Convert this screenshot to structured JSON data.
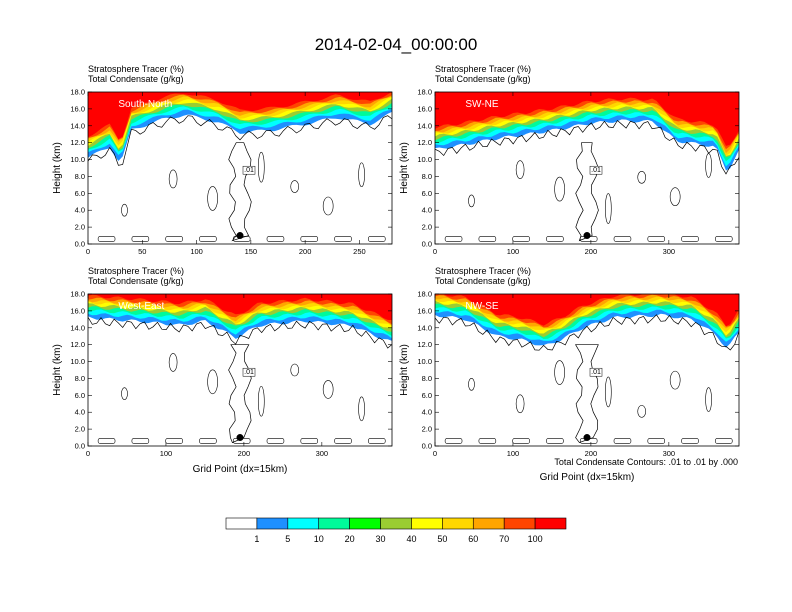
{
  "title": "2014-02-04_00:00:00",
  "field_labels": [
    "Stratosphere Tracer   (%)",
    "Total Condensate   (g/kg)"
  ],
  "contour_info": "Total Condensate Contours: .01 to .01 by .000",
  "colors": {
    "levels": [
      "#ffffff",
      "#1e90ff",
      "#00ffff",
      "#00fa9a",
      "#00ff00",
      "#9acd32",
      "#ffff00",
      "#ffd700",
      "#ffa500",
      "#ff4500",
      "#ff0000"
    ],
    "contour": "#000000",
    "marker": "#000000"
  },
  "chart_data": [
    {
      "type": "heatmap",
      "panel_label": "South-North",
      "ylabel": "Height (km)",
      "xlabel": "",
      "xlim": [
        0,
        280
      ],
      "ylim": [
        0,
        18
      ],
      "xticks": [
        "0",
        "50",
        "100",
        "150",
        "200",
        "250"
      ],
      "yticks": [
        "0.0",
        "2.0",
        "4.0",
        "6.0",
        "8.0",
        "10.0",
        "12.0",
        "14.0",
        "16.0",
        "18.0"
      ],
      "contour_label": ".01",
      "marker": {
        "x": 140,
        "y": 1.0
      },
      "tracer_front": [
        [
          0,
          10.2
        ],
        [
          20,
          11.5
        ],
        [
          30,
          9.5
        ],
        [
          40,
          13.5
        ],
        [
          70,
          14.8
        ],
        [
          90,
          15.3
        ],
        [
          120,
          14.4
        ],
        [
          140,
          13.2
        ],
        [
          170,
          13.5
        ],
        [
          200,
          14.2
        ],
        [
          230,
          15.0
        ],
        [
          260,
          14.2
        ],
        [
          280,
          15.5
        ]
      ]
    },
    {
      "type": "heatmap",
      "panel_label": "SW-NE",
      "ylabel": "Height (km)",
      "xlabel": "",
      "xlim": [
        0,
        390
      ],
      "ylim": [
        0,
        18
      ],
      "xticks": [
        "0",
        "100",
        "200",
        "300"
      ],
      "yticks": [
        "0.0",
        "2.0",
        "4.0",
        "6.0",
        "8.0",
        "10.0",
        "12.0",
        "14.0",
        "16.0",
        "18.0"
      ],
      "contour_label": ".01",
      "marker": {
        "x": 195,
        "y": 1.0
      },
      "tracer_front": [
        [
          0,
          11.2
        ],
        [
          40,
          11.8
        ],
        [
          80,
          12.5
        ],
        [
          120,
          13.0
        ],
        [
          160,
          13.6
        ],
        [
          200,
          14.3
        ],
        [
          240,
          14.6
        ],
        [
          280,
          14.5
        ],
        [
          310,
          12.2
        ],
        [
          340,
          11.8
        ],
        [
          360,
          11.5
        ],
        [
          375,
          8.5
        ],
        [
          390,
          11.0
        ]
      ]
    },
    {
      "type": "heatmap",
      "panel_label": "West-East",
      "ylabel": "Height (km)",
      "xlabel": "Grid Point (dx=15km)",
      "xlim": [
        0,
        390
      ],
      "ylim": [
        0,
        18
      ],
      "xticks": [
        "0",
        "100",
        "200",
        "300"
      ],
      "yticks": [
        "0.0",
        "2.0",
        "4.0",
        "6.0",
        "8.0",
        "10.0",
        "12.0",
        "14.0",
        "16.0",
        "18.0"
      ],
      "contour_label": ".01",
      "marker": {
        "x": 195,
        "y": 1.0
      },
      "tracer_front": [
        [
          0,
          15.2
        ],
        [
          60,
          14.8
        ],
        [
          120,
          14.3
        ],
        [
          150,
          14.8
        ],
        [
          190,
          12.8
        ],
        [
          220,
          14.3
        ],
        [
          280,
          14.8
        ],
        [
          340,
          14.2
        ],
        [
          370,
          13.0
        ],
        [
          390,
          12.3
        ]
      ]
    },
    {
      "type": "heatmap",
      "panel_label": "NW-SE",
      "ylabel": "Height (km)",
      "xlabel": "Grid Point (dx=15km)",
      "xlim": [
        0,
        390
      ],
      "ylim": [
        0,
        18
      ],
      "xticks": [
        "0",
        "100",
        "200",
        "300"
      ],
      "yticks": [
        "0.0",
        "2.0",
        "4.0",
        "6.0",
        "8.0",
        "10.0",
        "12.0",
        "14.0",
        "16.0",
        "18.0"
      ],
      "contour_label": ".01",
      "marker": {
        "x": 195,
        "y": 1.0
      },
      "tracer_front": [
        [
          0,
          15.5
        ],
        [
          40,
          15.0
        ],
        [
          80,
          13.0
        ],
        [
          110,
          12.6
        ],
        [
          140,
          11.8
        ],
        [
          160,
          12.5
        ],
        [
          190,
          14.0
        ],
        [
          230,
          15.2
        ],
        [
          290,
          15.5
        ],
        [
          330,
          15.0
        ],
        [
          360,
          13.2
        ],
        [
          375,
          11.5
        ],
        [
          390,
          13.5
        ]
      ]
    }
  ],
  "legend": {
    "values": [
      "1",
      "5",
      "10",
      "20",
      "30",
      "40",
      "50",
      "60",
      "70",
      "100"
    ]
  }
}
